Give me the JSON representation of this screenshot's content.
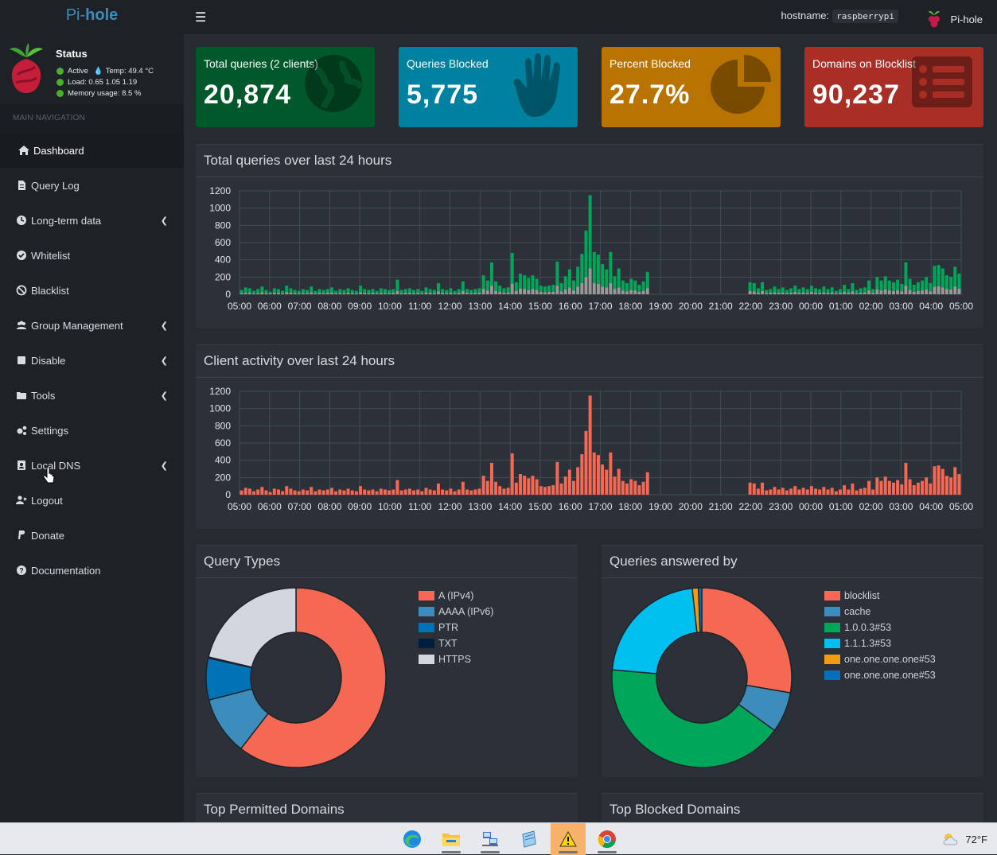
{
  "app": {
    "logo_a": "Pi-",
    "logo_b": "hole"
  },
  "topbar": {
    "menu_icon": "hamburger-icon",
    "hostname_label": "hostname:",
    "hostname": "raspberrypi",
    "user": "Pi-hole"
  },
  "status": {
    "title": "Status",
    "active": "Active",
    "temp": "Temp: 49.4 °C",
    "load": "Load:  0.65  1.05  1.19",
    "memory": "Memory usage:  8.5 %"
  },
  "nav": {
    "header": "MAIN NAVIGATION",
    "items": [
      {
        "label": "Dashboard",
        "icon": "home-icon"
      },
      {
        "label": "Query Log",
        "icon": "file-icon"
      },
      {
        "label": "Long-term data",
        "icon": "clock-icon"
      },
      {
        "label": "Whitelist",
        "icon": "check-circle-icon"
      },
      {
        "label": "Blacklist",
        "icon": "ban-icon"
      },
      {
        "label": "Group Management",
        "icon": "users-icon"
      },
      {
        "label": "Disable",
        "icon": "stop-icon"
      },
      {
        "label": "Tools",
        "icon": "folder-icon"
      },
      {
        "label": "Settings",
        "icon": "gears-icon"
      },
      {
        "label": "Local DNS",
        "icon": "address-book-icon"
      },
      {
        "label": "Logout",
        "icon": "user-times-icon"
      },
      {
        "label": "Donate",
        "icon": "paypal-icon"
      },
      {
        "label": "Documentation",
        "icon": "question-circle-icon"
      }
    ]
  },
  "tiles": [
    {
      "label": "Total queries (2 clients)",
      "value": "20,874",
      "color": "#00582b",
      "icon": "globe-icon"
    },
    {
      "label": "Queries Blocked",
      "value": "5,775",
      "color": "#00819f",
      "icon": "hand-icon"
    },
    {
      "label": "Percent Blocked",
      "value": "27.7%",
      "color": "#b87300",
      "icon": "pie-chart-icon"
    },
    {
      "label": "Domains on Blocklist",
      "value": "90,237",
      "color": "#a82e26",
      "icon": "list-icon"
    }
  ],
  "boxes": {
    "queries_title": "Total queries over last 24 hours",
    "clients_title": "Client activity over last 24 hours",
    "types_title": "Query Types",
    "answered_title": "Queries answered by",
    "permitted_title": "Top Permitted Domains",
    "blocked_title": "Top Blocked Domains"
  },
  "chart_data": [
    {
      "type": "bar",
      "title": "Total queries over last 24 hours",
      "xlabel": "",
      "ylabel": "",
      "ylim": [
        0,
        1200
      ],
      "yticks": [
        0,
        200,
        400,
        600,
        800,
        1000,
        1200
      ],
      "xticks": [
        "05:00",
        "06:00",
        "07:00",
        "08:00",
        "09:00",
        "10:00",
        "11:00",
        "12:00",
        "13:00",
        "14:00",
        "15:00",
        "16:00",
        "17:00",
        "18:00",
        "19:00",
        "20:00",
        "21:00",
        "22:00",
        "23:00",
        "00:00",
        "01:00",
        "02:00",
        "03:00",
        "04:00",
        "05:00"
      ],
      "bin_minutes": 10,
      "series": [
        {
          "name": "Permitted",
          "color": "#00a65a",
          "values": [
            50,
            80,
            70,
            40,
            60,
            90,
            50,
            30,
            70,
            60,
            40,
            100,
            70,
            50,
            40,
            60,
            50,
            90,
            40,
            60,
            50,
            60,
            80,
            40,
            60,
            50,
            70,
            50,
            40,
            100,
            60,
            50,
            60,
            40,
            70,
            60,
            50,
            60,
            170,
            50,
            60,
            70,
            50,
            60,
            40,
            80,
            60,
            50,
            130,
            60,
            50,
            70,
            40,
            60,
            150,
            60,
            50,
            60,
            70,
            220,
            160,
            370,
            150,
            100,
            70,
            80,
            480,
            140,
            240,
            220,
            190,
            220,
            180,
            100,
            90,
            100,
            110,
            380,
            130,
            210,
            290,
            160,
            320,
            470,
            740,
            1150,
            490,
            460,
            350,
            290,
            490,
            210,
            300,
            160,
            130,
            180,
            160,
            110,
            150,
            260,
            0,
            0,
            0,
            0,
            0,
            0,
            0,
            0,
            0,
            0,
            0,
            0,
            0,
            0,
            0,
            0,
            0,
            0,
            0,
            0,
            0,
            0,
            0,
            0,
            140,
            130,
            70,
            140,
            50,
            60,
            90,
            60,
            80,
            50,
            70,
            100,
            60,
            80,
            60,
            100,
            70,
            60,
            90,
            60,
            80,
            40,
            60,
            110,
            60,
            130,
            50,
            70,
            80,
            160,
            60,
            200,
            160,
            210,
            160,
            140,
            170,
            120,
            370,
            180,
            110,
            140,
            160,
            200,
            130,
            330,
            340,
            300,
            220,
            200,
            320,
            240
          ]
        },
        {
          "name": "Blocked",
          "color": "#999999",
          "values": [
            15,
            20,
            18,
            12,
            15,
            25,
            15,
            10,
            20,
            18,
            12,
            25,
            20,
            15,
            12,
            15,
            15,
            25,
            12,
            18,
            15,
            18,
            22,
            12,
            16,
            15,
            20,
            14,
            12,
            25,
            18,
            15,
            18,
            12,
            20,
            16,
            15,
            18,
            40,
            15,
            18,
            20,
            15,
            18,
            12,
            22,
            18,
            15,
            35,
            18,
            15,
            20,
            12,
            18,
            40,
            18,
            15,
            18,
            20,
            60,
            45,
            100,
            40,
            30,
            20,
            22,
            120,
            40,
            65,
            60,
            50,
            60,
            50,
            30,
            25,
            30,
            30,
            100,
            35,
            55,
            80,
            45,
            90,
            130,
            200,
            300,
            130,
            120,
            90,
            80,
            130,
            60,
            80,
            45,
            35,
            50,
            45,
            30,
            40,
            70,
            0,
            0,
            0,
            0,
            0,
            0,
            0,
            0,
            0,
            0,
            0,
            0,
            0,
            0,
            0,
            0,
            0,
            0,
            0,
            0,
            0,
            0,
            0,
            0,
            40,
            35,
            20,
            38,
            15,
            18,
            25,
            18,
            22,
            15,
            20,
            28,
            18,
            22,
            18,
            28,
            20,
            18,
            25,
            18,
            22,
            12,
            18,
            30,
            18,
            35,
            15,
            20,
            22,
            45,
            18,
            55,
            45,
            58,
            45,
            38,
            48,
            35,
            100,
            50,
            30,
            38,
            45,
            55,
            35,
            90,
            95,
            80,
            60,
            55,
            88,
            65
          ]
        }
      ]
    },
    {
      "type": "bar",
      "title": "Client activity over last 24 hours",
      "xlabel": "",
      "ylabel": "",
      "ylim": [
        0,
        1200
      ],
      "yticks": [
        0,
        200,
        400,
        600,
        800,
        1000,
        1200
      ],
      "xticks": [
        "05:00",
        "06:00",
        "07:00",
        "08:00",
        "09:00",
        "10:00",
        "11:00",
        "12:00",
        "13:00",
        "14:00",
        "15:00",
        "16:00",
        "17:00",
        "18:00",
        "19:00",
        "20:00",
        "21:00",
        "22:00",
        "23:00",
        "00:00",
        "01:00",
        "02:00",
        "03:00",
        "04:00",
        "05:00"
      ],
      "bin_minutes": 10,
      "series": [
        {
          "name": "Client",
          "color": "#f56954",
          "values": [
            50,
            80,
            70,
            40,
            60,
            90,
            50,
            30,
            70,
            60,
            40,
            100,
            70,
            50,
            40,
            60,
            50,
            90,
            40,
            60,
            50,
            60,
            80,
            40,
            60,
            50,
            70,
            50,
            40,
            100,
            60,
            50,
            60,
            40,
            70,
            60,
            50,
            60,
            170,
            50,
            60,
            70,
            50,
            60,
            40,
            80,
            60,
            50,
            130,
            60,
            50,
            70,
            40,
            60,
            150,
            60,
            50,
            60,
            70,
            220,
            160,
            370,
            150,
            100,
            70,
            80,
            480,
            140,
            240,
            220,
            190,
            220,
            180,
            100,
            90,
            100,
            110,
            380,
            130,
            210,
            290,
            160,
            320,
            470,
            740,
            1150,
            490,
            460,
            350,
            290,
            490,
            210,
            300,
            160,
            130,
            180,
            160,
            110,
            150,
            260,
            0,
            0,
            0,
            0,
            0,
            0,
            0,
            0,
            0,
            0,
            0,
            0,
            0,
            0,
            0,
            0,
            0,
            0,
            0,
            0,
            0,
            0,
            0,
            0,
            140,
            130,
            70,
            140,
            50,
            60,
            90,
            60,
            80,
            50,
            70,
            100,
            60,
            80,
            60,
            100,
            70,
            60,
            90,
            60,
            80,
            40,
            60,
            110,
            60,
            130,
            50,
            70,
            80,
            160,
            60,
            200,
            160,
            210,
            160,
            140,
            170,
            120,
            370,
            180,
            110,
            140,
            160,
            200,
            130,
            330,
            340,
            300,
            220,
            200,
            320,
            240
          ]
        }
      ]
    },
    {
      "type": "pie",
      "title": "Query Types",
      "donut": true,
      "categories": [
        "A (IPv4)",
        "AAAA (IPv6)",
        "PTR",
        "TXT",
        "HTTPS"
      ],
      "values": [
        60.5,
        10.5,
        7.5,
        0.2,
        21.3
      ],
      "colors": [
        "#f56954",
        "#3c8dbc",
        "#0073b7",
        "#001f3f",
        "#d2d6de"
      ]
    },
    {
      "type": "pie",
      "title": "Queries answered by",
      "donut": true,
      "categories": [
        "blocklist",
        "cache",
        "1.0.0.3#53",
        "1.1.1.3#53",
        "one.one.one.one#53",
        "one.one.one.one#53"
      ],
      "values": [
        27.7,
        7.3,
        41.4,
        21.9,
        1.1,
        0.6
      ],
      "colors": [
        "#f56954",
        "#3c8dbc",
        "#00a65a",
        "#00c0ef",
        "#f39c12",
        "#0073b7"
      ]
    }
  ],
  "taskbar": {
    "weather": "72°F",
    "apps": [
      "edge-icon",
      "file-explorer-icon",
      "network-icon",
      "notepad-icon",
      "warning-icon",
      "chrome-icon"
    ]
  }
}
